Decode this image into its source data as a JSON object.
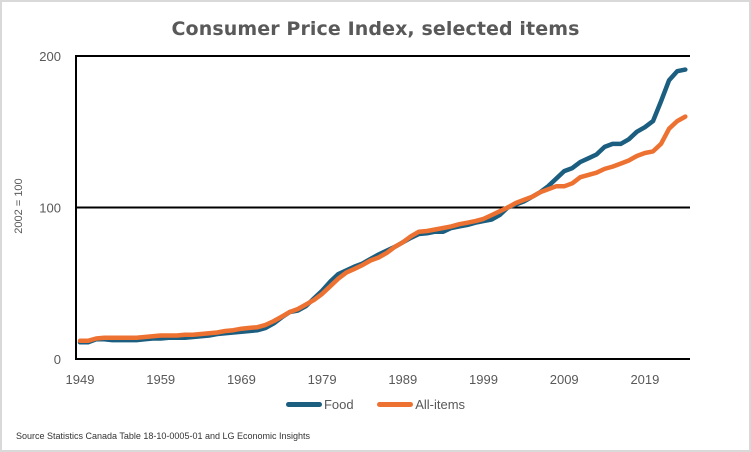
{
  "chart_data": {
    "type": "line",
    "title": "Consumer Price Index, selected items",
    "xlabel": "",
    "ylabel": "2002 = 100",
    "ylim": [
      0,
      200
    ],
    "yticks": [
      "0",
      "100",
      "200"
    ],
    "xticks": [
      "1949",
      "1959",
      "1969",
      "1979",
      "1989",
      "1999",
      "2009",
      "2019"
    ],
    "xlim": [
      1949,
      2024
    ],
    "grid": "horizontal",
    "legend_position": "bottom",
    "x": [
      1949,
      1950,
      1951,
      1952,
      1953,
      1954,
      1955,
      1956,
      1957,
      1958,
      1959,
      1960,
      1961,
      1962,
      1963,
      1964,
      1965,
      1966,
      1967,
      1968,
      1969,
      1970,
      1971,
      1972,
      1973,
      1974,
      1975,
      1976,
      1977,
      1978,
      1979,
      1980,
      1981,
      1982,
      1983,
      1984,
      1985,
      1986,
      1987,
      1988,
      1989,
      1990,
      1991,
      1992,
      1993,
      1994,
      1995,
      1996,
      1997,
      1998,
      1999,
      2000,
      2001,
      2002,
      2003,
      2004,
      2005,
      2006,
      2007,
      2008,
      2009,
      2010,
      2011,
      2012,
      2013,
      2014,
      2015,
      2016,
      2017,
      2018,
      2019,
      2020,
      2021,
      2022,
      2023,
      2024
    ],
    "series": [
      {
        "name": "Food",
        "color": "#1b5e80",
        "values": [
          11,
          11,
          13,
          13,
          12.5,
          12.5,
          12.5,
          12.5,
          13,
          13.5,
          13.5,
          14,
          14,
          14,
          14.5,
          15,
          15.5,
          16.5,
          17,
          17.5,
          18,
          18.5,
          19,
          20.5,
          23.5,
          27.5,
          31,
          32,
          35,
          40,
          45,
          51,
          56,
          58.5,
          61,
          63,
          66,
          69,
          71.5,
          74,
          77,
          80,
          82.5,
          83,
          84,
          84,
          86.5,
          87.5,
          88.5,
          90,
          91,
          92,
          95,
          100,
          102,
          104,
          107,
          110,
          114,
          119,
          124,
          126,
          130,
          132.5,
          135,
          140,
          142,
          142,
          145,
          150,
          153,
          157,
          170,
          184,
          190,
          191
        ]
      },
      {
        "name": "All-items",
        "color": "#ed7232",
        "values": [
          12,
          12,
          13.5,
          14,
          14,
          14,
          14,
          14,
          14.5,
          15,
          15.5,
          15.5,
          15.5,
          16,
          16,
          16.5,
          17,
          17.5,
          18.5,
          19,
          20,
          20.5,
          21,
          22.5,
          25,
          28,
          31,
          33,
          36,
          39,
          43,
          48,
          53,
          57,
          59.5,
          62,
          65,
          67,
          70,
          74,
          77,
          81,
          84,
          84.5,
          85.5,
          86.5,
          87.5,
          89,
          90,
          91,
          92.5,
          95,
          97.5,
          100,
          103,
          105,
          107,
          110,
          112,
          114,
          114,
          116,
          120,
          121.5,
          123,
          125.5,
          127,
          129,
          131,
          134,
          136,
          137,
          142,
          152,
          157,
          160
        ]
      }
    ]
  },
  "source": "Source Statistics  Canada Table  18-10-0005-01  and LG Economic  Insights"
}
